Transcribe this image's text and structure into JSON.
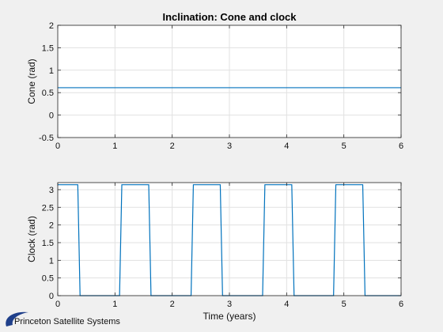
{
  "chart_data": [
    {
      "type": "line",
      "title": "Inclination: Cone and clock",
      "xlabel": "",
      "ylabel": "Cone (rad)",
      "xlim": [
        0,
        6
      ],
      "ylim": [
        -0.5,
        2
      ],
      "x_ticks": [
        "0",
        "1",
        "2",
        "3",
        "4",
        "5",
        "6"
      ],
      "y_ticks": [
        "-0.5",
        "0",
        "0.5",
        "1",
        "1.5",
        "2"
      ],
      "grid": true,
      "series": [
        {
          "name": "cone",
          "x": [
            0,
            6
          ],
          "y": [
            0.61,
            0.61
          ]
        }
      ]
    },
    {
      "type": "line",
      "title": "",
      "xlabel": "Time (years)",
      "ylabel": "Clock (rad)",
      "xlim": [
        0,
        6
      ],
      "ylim": [
        0,
        3.2
      ],
      "x_ticks": [
        "0",
        "1",
        "2",
        "3",
        "4",
        "5",
        "6"
      ],
      "y_ticks": [
        "0",
        "0.5",
        "1",
        "1.5",
        "2",
        "2.5",
        "3"
      ],
      "grid": true,
      "series": [
        {
          "name": "clock",
          "x": [
            0,
            0.35,
            0.39,
            1.08,
            1.12,
            1.59,
            1.63,
            2.33,
            2.37,
            2.84,
            2.88,
            3.58,
            3.62,
            4.09,
            4.13,
            4.82,
            4.86,
            5.33,
            5.37,
            6
          ],
          "y": [
            3.14,
            3.14,
            0,
            0,
            3.14,
            3.14,
            0,
            0,
            3.14,
            3.14,
            0,
            0,
            3.14,
            3.14,
            0,
            0,
            3.14,
            3.14,
            0,
            0
          ]
        }
      ]
    }
  ],
  "colors": {
    "line": "#0072BD",
    "grid": "#e1e1e1",
    "axes": "#262626",
    "logo": "#1f3f8a"
  },
  "logo": {
    "text": "Princeton Satellite Systems"
  }
}
